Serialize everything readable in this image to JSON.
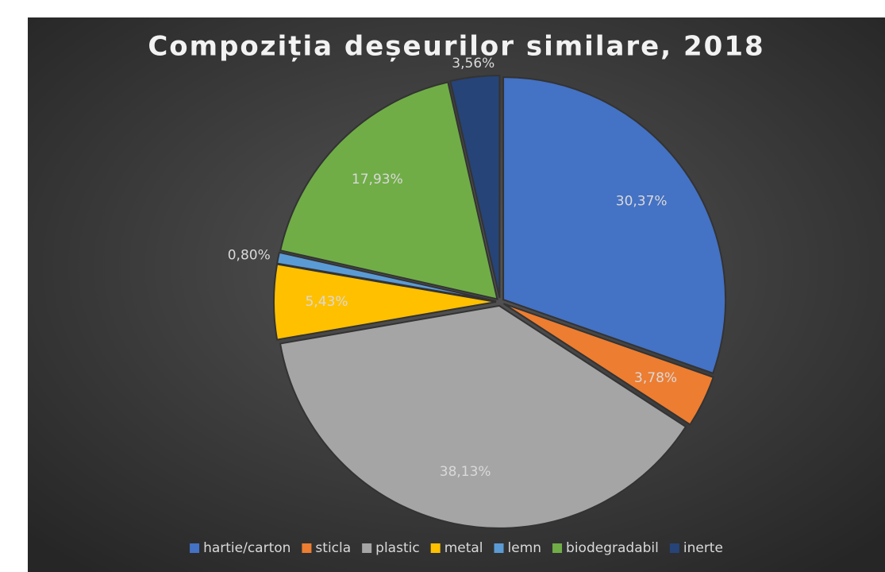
{
  "chart_data": {
    "type": "pie",
    "title": "Compoziția deșeurilor similare, 2018",
    "categories": [
      "hartie/carton",
      "sticla",
      "plastic",
      "metal",
      "lemn",
      "biodegradabil",
      "inerte"
    ],
    "values": [
      30.37,
      3.78,
      38.13,
      5.43,
      0.8,
      17.93,
      3.56
    ],
    "value_labels": [
      "30,37%",
      "3,78%",
      "38,13%",
      "5,43%",
      "0,80%",
      "17,93%",
      "3,56%"
    ],
    "colors": [
      "#4472c4",
      "#ed7d31",
      "#a5a5a5",
      "#ffc000",
      "#5b9bd5",
      "#70ad47",
      "#264478"
    ],
    "legend": "bottom"
  }
}
